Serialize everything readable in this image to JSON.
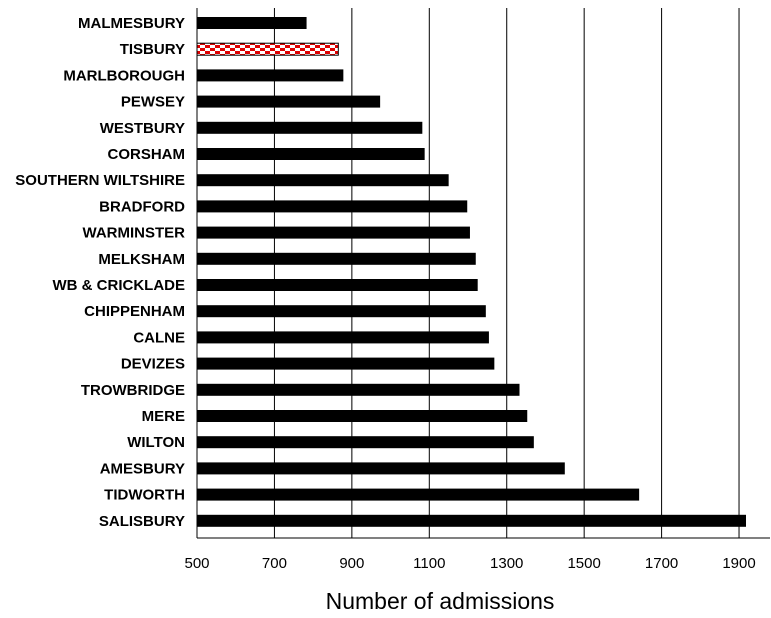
{
  "chart_data": {
    "type": "bar",
    "orientation": "horizontal",
    "title": "",
    "xlabel": "Number of admissions",
    "ylabel": "",
    "xlim": [
      500,
      1980
    ],
    "xticks": [
      500,
      700,
      900,
      1100,
      1300,
      1500,
      1700,
      1900
    ],
    "grid": "vertical lines at x ticks",
    "highlighted_category": "TISBURY",
    "highlight_pattern": "red-and-white checkered",
    "bar_color": "#000000",
    "highlight_color": "#e00000",
    "categories": [
      "MALMESBURY",
      "TISBURY",
      "MARLBOROUGH",
      "PEWSEY",
      "WESTBURY",
      "CORSHAM",
      "SOUTHERN WILTSHIRE",
      "BRADFORD",
      "WARMINSTER",
      "MELKSHAM",
      "WB & CRICKLADE",
      "CHIPPENHAM",
      "CALNE",
      "DEVIZES",
      "TROWBRIDGE",
      "MERE",
      "WILTON",
      "AMESBURY",
      "TIDWORTH",
      "SALISBURY"
    ],
    "values": [
      783,
      865,
      878,
      973,
      1082,
      1088,
      1150,
      1198,
      1205,
      1220,
      1225,
      1246,
      1254,
      1268,
      1333,
      1353,
      1370,
      1450,
      1642,
      1918
    ]
  }
}
